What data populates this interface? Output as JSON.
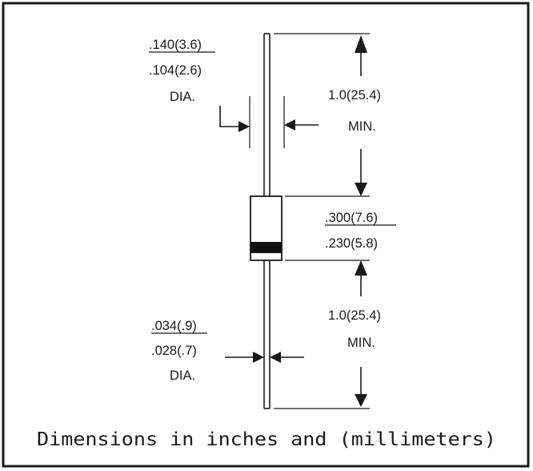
{
  "colors": {
    "ink": "#1a1a1a",
    "background": "#ffffff",
    "band": "#111111"
  },
  "dimensions": {
    "lead_diameter_max": ".140(3.6)",
    "lead_diameter_min": ".104(2.6)",
    "lead_diameter_unit": "DIA.",
    "top_lead_length": "1.0(25.4)",
    "top_lead_length_note": "MIN.",
    "body_length_max": ".300(7.6)",
    "body_length_min": ".230(5.8)",
    "bottom_lead_length": "1.0(25.4)",
    "bottom_lead_length_note": "MIN.",
    "wire_diameter_max": ".034(.9)",
    "wire_diameter_min": ".028(.7)",
    "wire_diameter_unit": "DIA."
  },
  "caption": "Dimensions in inches and (millimeters)"
}
